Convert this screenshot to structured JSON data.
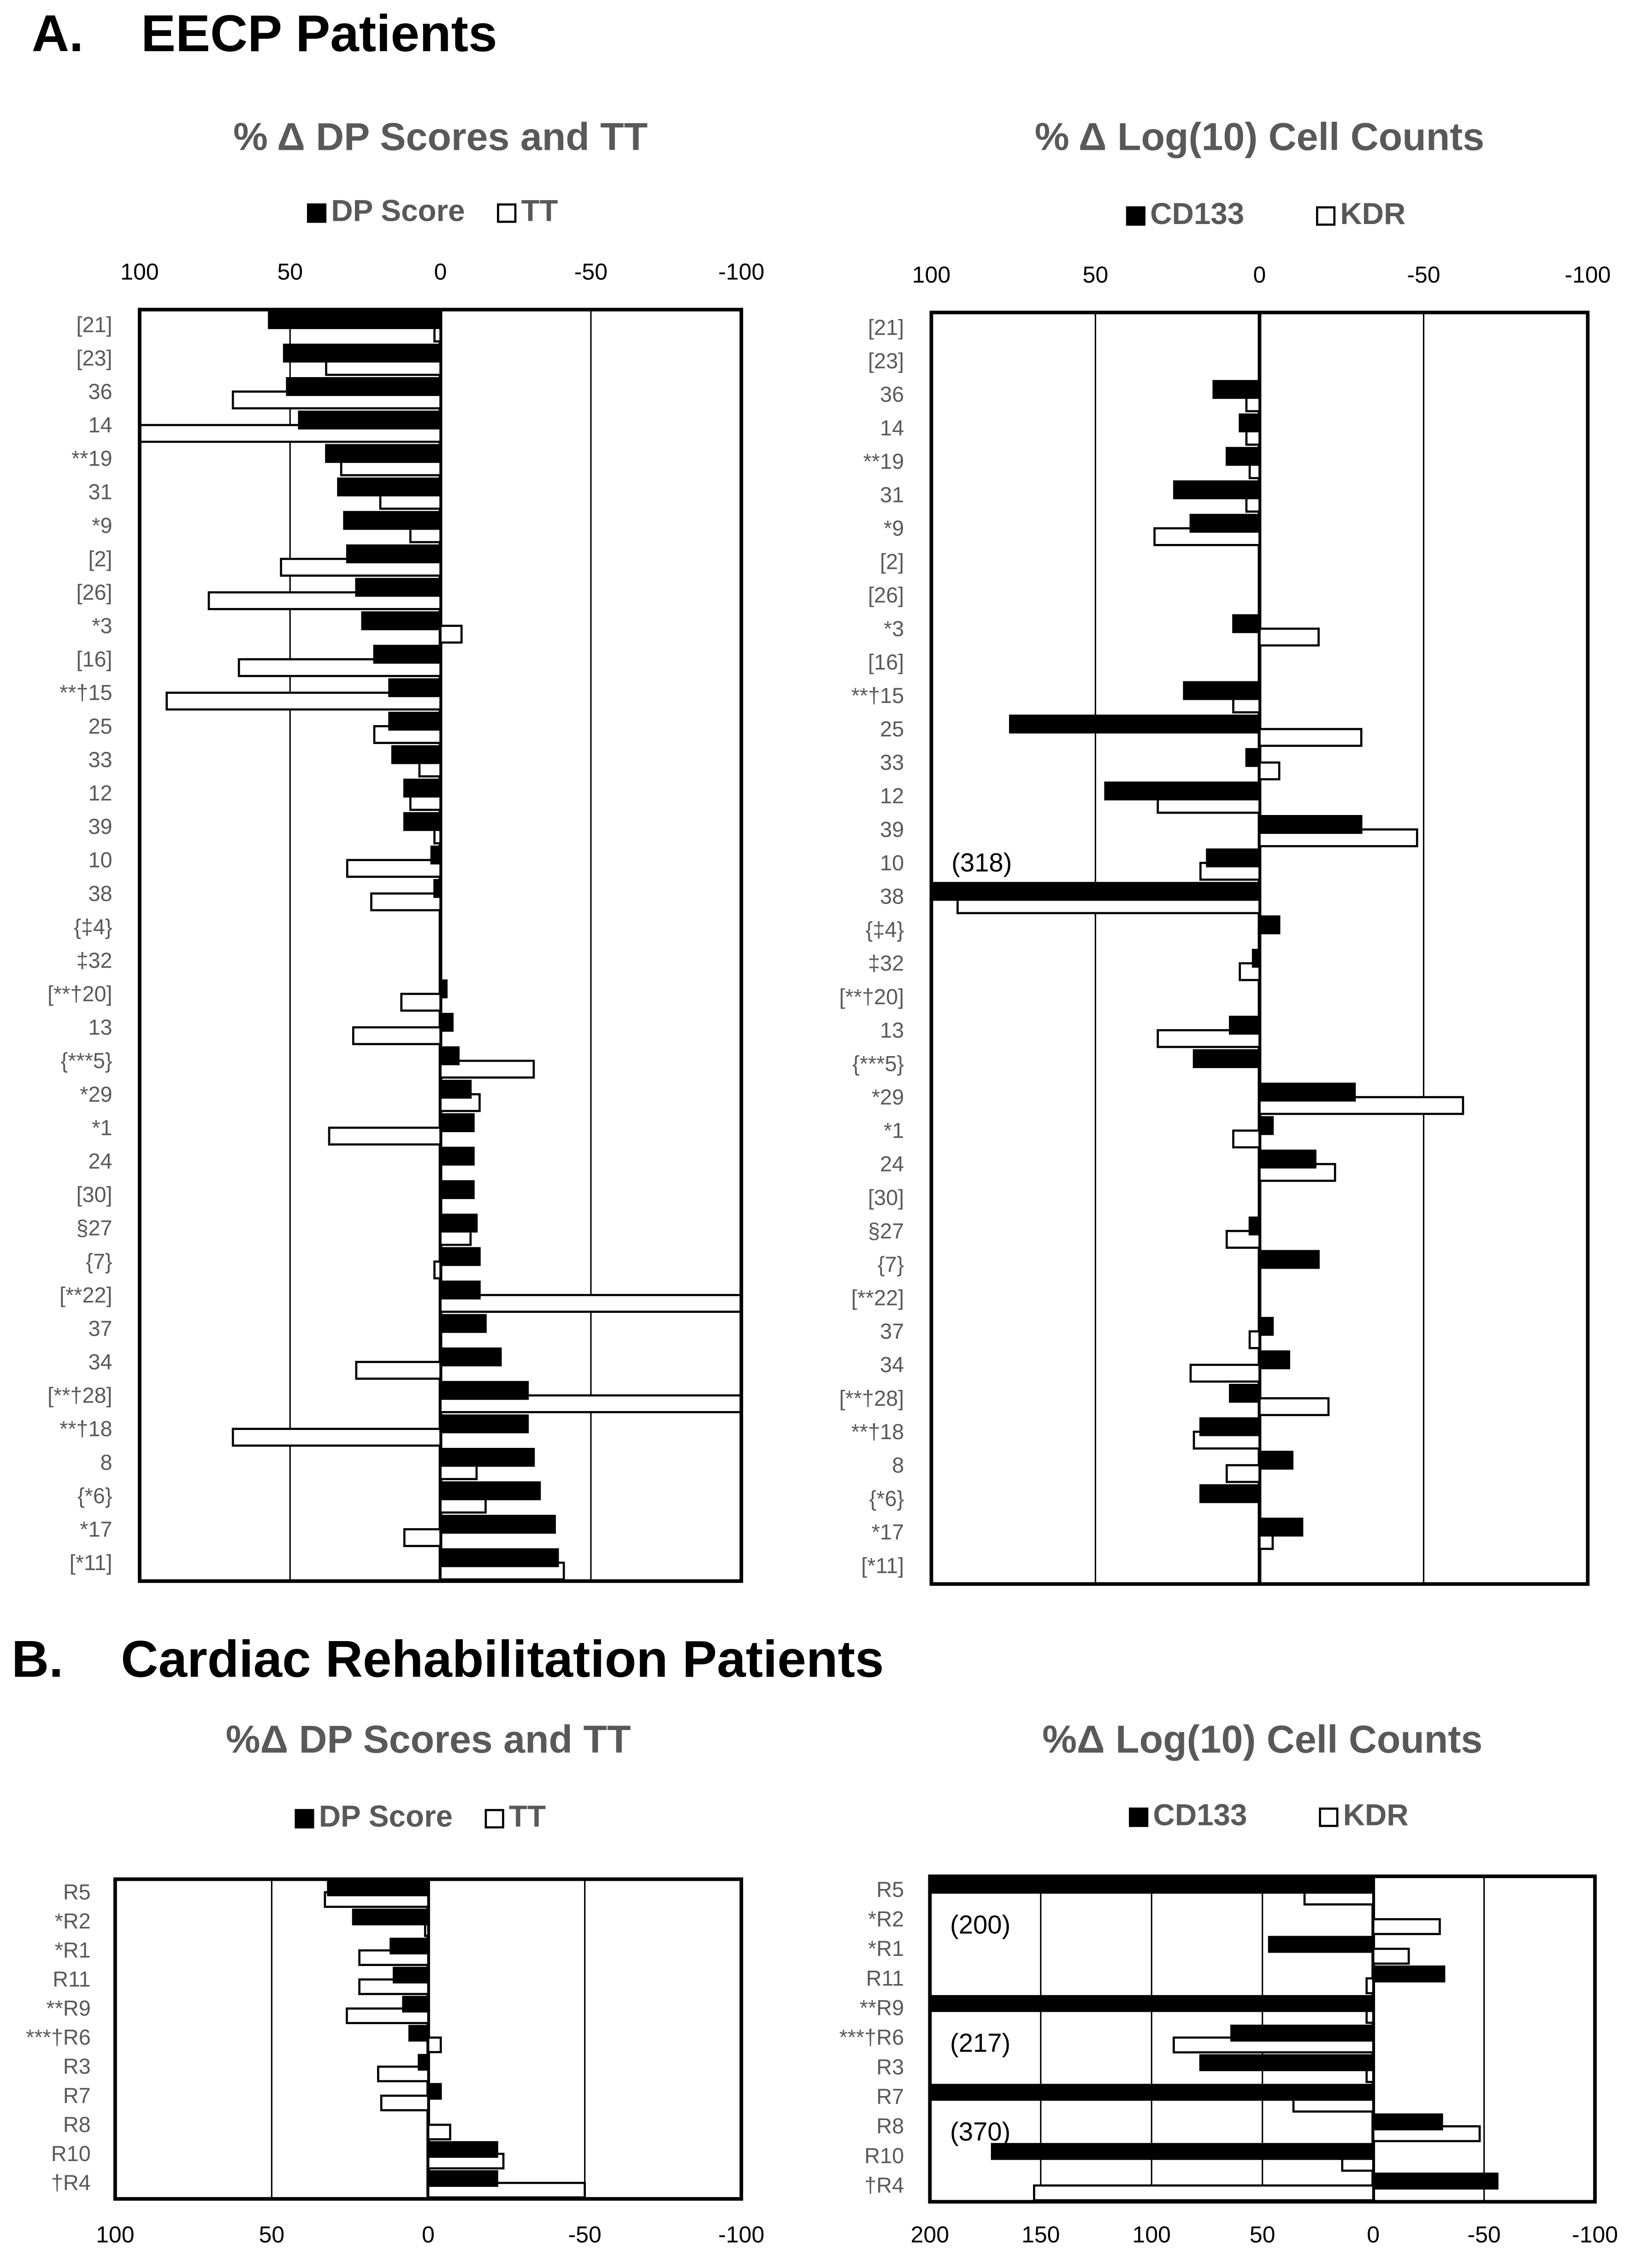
{
  "panels": [
    {
      "label": "A.",
      "title": "EECP Patients"
    },
    {
      "label": "B.",
      "title": "Cardiac Rehabilitation Patients"
    }
  ],
  "chart_data": [
    {
      "type": "hbar",
      "title": "% Δ DP Scores and TT",
      "legend": "top",
      "xaxis": "top",
      "grid": true,
      "edgecolor": "#000000",
      "categories": [
        "[21]",
        "[23]",
        "36",
        "14",
        "**19",
        "31",
        "*9",
        "[2]",
        "[26]",
        "*3",
        "[16]",
        "**†15",
        "25",
        "33",
        "12",
        "39",
        "10",
        "38",
        "{‡4}",
        "‡32",
        "[**†20]",
        "13",
        "{***5}",
        "*29",
        "*1",
        "24",
        "[30]",
        "§27",
        "{7}",
        "[**22]",
        "37",
        "34",
        "[**†28]",
        "**†18",
        "8",
        "{*6}",
        "*17",
        "[*11]"
      ],
      "series": [
        {
          "name": "DP Score",
          "color": "#000000",
          "values": [
            57,
            52,
            51,
            47,
            38,
            34,
            32,
            31,
            28,
            26,
            22,
            17,
            17,
            16,
            12,
            12,
            3,
            2,
            null,
            null,
            -2,
            -4,
            -6,
            -10,
            -11,
            -11,
            -11,
            -12,
            -13,
            -13,
            -15,
            -20,
            -29,
            -29,
            -31,
            -33,
            -38,
            -39
          ]
        },
        {
          "name": "TT",
          "color": "#ffffff",
          "values": [
            2,
            38,
            69,
            100,
            33,
            20,
            10,
            53,
            77,
            -7,
            67,
            91,
            22,
            7,
            10,
            2,
            31,
            23,
            null,
            null,
            13,
            29,
            -31,
            -13,
            37,
            null,
            null,
            -10,
            2,
            -100,
            null,
            28,
            -100,
            69,
            -12,
            -15,
            12,
            -41
          ]
        }
      ],
      "xlim": [
        100,
        -100
      ],
      "xticks": [
        100,
        50,
        0,
        -50,
        -100
      ]
    },
    {
      "type": "hbar",
      "title": "% Δ Log(10) Cell Counts",
      "legend": "top",
      "xaxis": "top",
      "grid": true,
      "edgecolor": "#000000",
      "categories": [
        "[21]",
        "[23]",
        "36",
        "14",
        "**19",
        "31",
        "*9",
        "[2]",
        "[26]",
        "*3",
        "[16]",
        "**†15",
        "25",
        "33",
        "12",
        "39",
        "10",
        "38",
        "{‡4}",
        "‡32",
        "[**†20]",
        "13",
        "{***5}",
        "*29",
        "*1",
        "24",
        "[30]",
        "§27",
        "{7}",
        "[**22]",
        "37",
        "34",
        "[**†28]",
        "**†18",
        "8",
        "{*6}",
        "*17",
        "[*11]"
      ],
      "series": [
        {
          "name": "CD133",
          "color": "#000000",
          "values": [
            null,
            null,
            14,
            6,
            10,
            26,
            21,
            null,
            null,
            8,
            null,
            23,
            76,
            4,
            47,
            -31,
            16,
            318,
            -6,
            2,
            null,
            9,
            20,
            -29,
            -4,
            -17,
            null,
            3,
            -18,
            null,
            -4,
            -9,
            9,
            18,
            -10,
            18,
            -13,
            null
          ],
          "value_labels": [
            null,
            null,
            null,
            null,
            null,
            null,
            null,
            null,
            null,
            null,
            null,
            null,
            null,
            null,
            null,
            null,
            null,
            "(318)",
            null,
            null,
            null,
            null,
            null,
            null,
            null,
            null,
            null,
            null,
            null,
            null,
            null,
            null,
            null,
            null,
            null,
            null,
            null,
            null
          ]
        },
        {
          "name": "KDR",
          "color": "#ffffff",
          "values": [
            null,
            null,
            4,
            4,
            3,
            4,
            32,
            null,
            null,
            -18,
            null,
            8,
            -31,
            -6,
            31,
            -48,
            18,
            92,
            null,
            6,
            null,
            31,
            null,
            -62,
            8,
            -23,
            null,
            10,
            null,
            null,
            3,
            21,
            -21,
            20,
            10,
            null,
            -4,
            null
          ]
        }
      ],
      "xlim": [
        100,
        -100
      ],
      "xticks": [
        100,
        50,
        0,
        -50,
        -100
      ]
    },
    {
      "type": "hbar",
      "title": "%Δ DP Scores and TT",
      "legend": "top",
      "xaxis": "bottom",
      "grid": true,
      "edgecolor": "#000000",
      "categories": [
        "R5",
        "*R2",
        "*R1",
        "R11",
        "**R9",
        "***†R6",
        "R3",
        "R7",
        "R8",
        "R10",
        "†R4"
      ],
      "series": [
        {
          "name": "DP Score",
          "color": "#000000",
          "values": [
            32,
            24,
            12,
            11,
            8,
            6,
            3,
            -4,
            null,
            -22,
            -22
          ]
        },
        {
          "name": "TT",
          "color": "#ffffff",
          "values": [
            33,
            1,
            22,
            22,
            26,
            -4,
            16,
            15,
            -7,
            -24,
            -50
          ]
        }
      ],
      "xlim": [
        100,
        -100
      ],
      "xticks": [
        100,
        50,
        0,
        -50,
        -100
      ]
    },
    {
      "type": "hbar",
      "title": "%Δ Log(10) Cell Counts",
      "legend": "top",
      "xaxis": "bottom",
      "grid": true,
      "edgecolor": "#000000",
      "categories": [
        "R5",
        "*R2",
        "*R1",
        "R11",
        "**R9",
        "***†R6",
        "R3",
        "R7",
        "R8",
        "R10",
        "†R4"
      ],
      "series": [
        {
          "name": "CD133",
          "color": "#000000",
          "values": [
            200,
            null,
            47,
            -32,
            217,
            64,
            78,
            370,
            -31,
            172,
            -56
          ],
          "value_labels": [
            "(200)",
            null,
            null,
            null,
            "(217)",
            null,
            null,
            "(370)",
            null,
            null,
            null
          ]
        },
        {
          "name": "KDR",
          "color": "#ffffff",
          "values": [
            31,
            -30,
            -16,
            3,
            3,
            90,
            3,
            36,
            -48,
            14,
            153
          ]
        }
      ],
      "xlim": [
        200,
        -100
      ],
      "xticks": [
        200,
        150,
        100,
        50,
        0,
        -50,
        -100
      ]
    }
  ]
}
